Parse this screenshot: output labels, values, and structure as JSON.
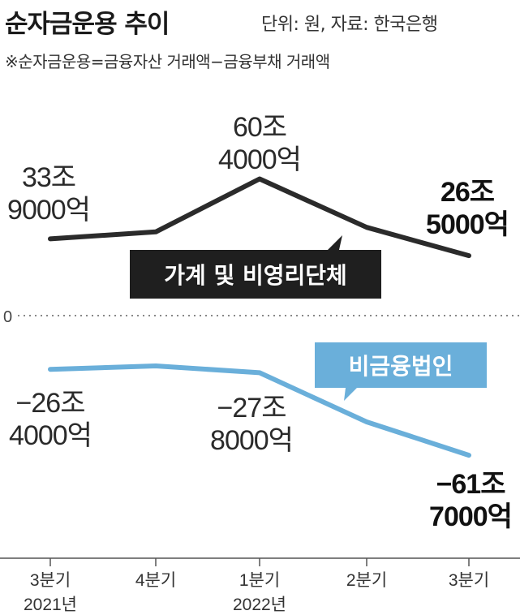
{
  "header": {
    "title": "순자금운용 추이",
    "unit": "단위: 원, 자료: 한국은행",
    "note": "※순자금운용=금융자산 거래액−금융부채 거래액"
  },
  "colors": {
    "household": "#2b2b2b",
    "corporate": "#6aafda",
    "axis": "#555555"
  },
  "chart_data": {
    "type": "line",
    "categories": [
      "3분기",
      "4분기",
      "1분기",
      "2분기",
      "3분기"
    ],
    "year_labels": [
      "2021년",
      "",
      "2022년",
      "",
      ""
    ],
    "zero_label": "0",
    "series": [
      {
        "name": "가계 및 비영리단체",
        "values": [
          33.9,
          37,
          60.4,
          39,
          26.5
        ],
        "labels": [
          [
            "33조",
            "9000억"
          ],
          null,
          [
            "60조",
            "4000억"
          ],
          null,
          [
            "26조",
            "5000억"
          ]
        ]
      },
      {
        "name": "비금융법인",
        "values": [
          -26.4,
          -25,
          -27.8,
          -48,
          -61.7
        ],
        "labels": [
          [
            "−26조",
            "4000억"
          ],
          null,
          [
            "−27조",
            "8000억"
          ],
          null,
          [
            "−61조",
            "7000억"
          ]
        ]
      }
    ]
  }
}
